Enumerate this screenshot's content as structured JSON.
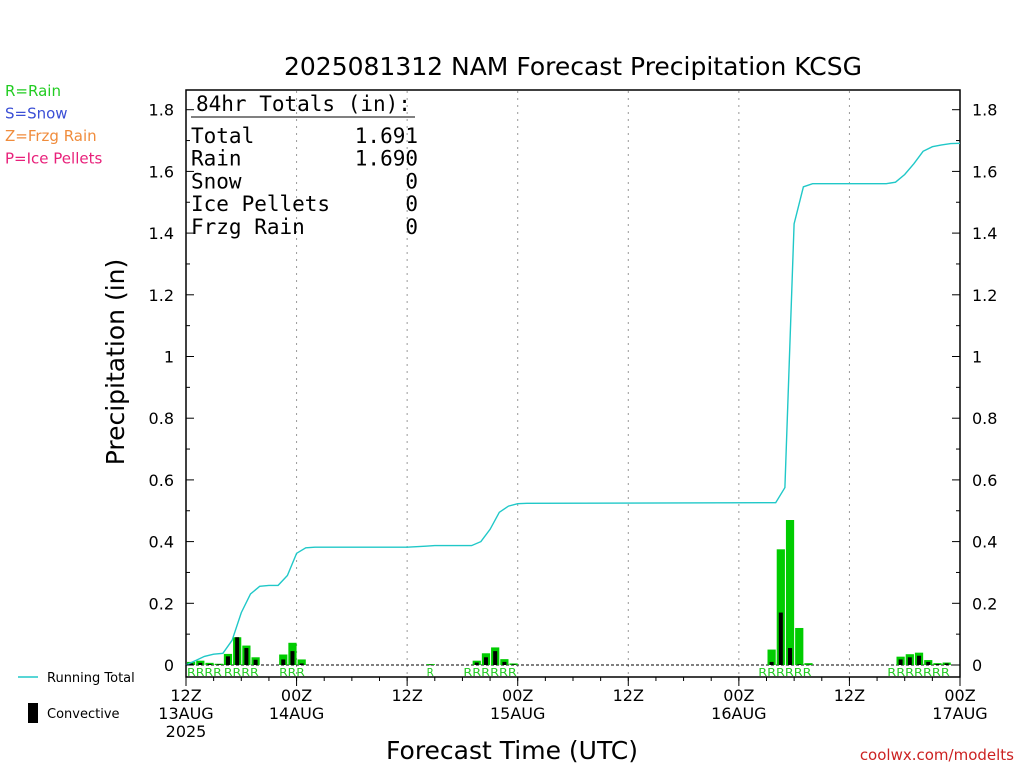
{
  "chart_data": {
    "type": "bar",
    "title": "2025081312 NAM Forecast Precipitation KCSG",
    "xlabel": "Forecast Time (UTC)",
    "ylabel": "Precipitation (in)",
    "ylim": [
      0,
      1.85
    ],
    "y_ticks": [
      "0",
      "0.2",
      "0.4",
      "0.6",
      "0.8",
      "1",
      "1.2",
      "1.4",
      "1.6",
      "1.8"
    ],
    "x_range_hours": [
      0,
      84
    ],
    "x_ticks": [
      {
        "hour": 0,
        "lines": [
          "12Z",
          "13AUG",
          "2025"
        ]
      },
      {
        "hour": 12,
        "lines": [
          "00Z",
          "14AUG"
        ]
      },
      {
        "hour": 24,
        "lines": [
          "12Z"
        ]
      },
      {
        "hour": 36,
        "lines": [
          "00Z",
          "15AUG"
        ]
      },
      {
        "hour": 48,
        "lines": [
          "12Z"
        ]
      },
      {
        "hour": 60,
        "lines": [
          "00Z",
          "16AUG"
        ]
      },
      {
        "hour": 72,
        "lines": [
          "12Z"
        ]
      },
      {
        "hour": 84,
        "lines": [
          "00Z",
          "17AUG"
        ]
      }
    ],
    "grid": "dotted vertical at 12-hour ticks",
    "totals_box": {
      "header": "84hr Totals (in):",
      "rows": [
        {
          "label": "Total",
          "value": "1.691"
        },
        {
          "label": "Rain",
          "value": "1.690"
        },
        {
          "label": "Snow",
          "value": "0"
        },
        {
          "label": "Ice Pellets",
          "value": "0"
        },
        {
          "label": "Frzg Rain",
          "value": "0"
        }
      ]
    },
    "ptype_legend": [
      {
        "text": "R=Rain",
        "color": "#22cc22"
      },
      {
        "text": "S=Snow",
        "color": "#3b4fd6"
      },
      {
        "text": "Z=Frzg Rain",
        "color": "#f08c3c"
      },
      {
        "text": "P=Ice Pellets",
        "color": "#e8207a"
      }
    ],
    "bottom_legend": {
      "running_total": "Running Total",
      "convective": "Convective"
    },
    "colors": {
      "rain": "#00cc00",
      "convective": "#000000",
      "running_total": "#20c8c8",
      "ptype_label": "#22cc22",
      "credit": "#cc2222"
    },
    "precip_bars": [
      {
        "hour": 1,
        "total": 0.01,
        "convective": 0.005
      },
      {
        "hour": 2,
        "total": 0.014,
        "convective": 0.007
      },
      {
        "hour": 3,
        "total": 0.007,
        "convective": 0.003
      },
      {
        "hour": 4,
        "total": 0.004,
        "convective": 0.002
      },
      {
        "hour": 5,
        "total": 0.036,
        "convective": 0.028
      },
      {
        "hour": 6,
        "total": 0.09,
        "convective": 0.09
      },
      {
        "hour": 7,
        "total": 0.063,
        "convective": 0.055
      },
      {
        "hour": 8,
        "total": 0.025,
        "convective": 0.017
      },
      {
        "hour": 11,
        "total": 0.034,
        "convective": 0.018
      },
      {
        "hour": 12,
        "total": 0.072,
        "convective": 0.045
      },
      {
        "hour": 13,
        "total": 0.018,
        "convective": 0.005
      },
      {
        "hour": 27,
        "total": 0.003,
        "convective": 0.001
      },
      {
        "hour": 32,
        "total": 0.014,
        "convective": 0.008
      },
      {
        "hour": 33,
        "total": 0.038,
        "convective": 0.025
      },
      {
        "hour": 34,
        "total": 0.057,
        "convective": 0.045
      },
      {
        "hour": 35,
        "total": 0.019,
        "convective": 0.01
      },
      {
        "hour": 36,
        "total": 0.005,
        "convective": 0.002
      },
      {
        "hour": 64,
        "total": 0.05,
        "convective": 0.01
      },
      {
        "hour": 65,
        "total": 0.375,
        "convective": 0.17
      },
      {
        "hour": 66,
        "total": 0.47,
        "convective": 0.055
      },
      {
        "hour": 67,
        "total": 0.12,
        "convective": 0.002
      },
      {
        "hour": 68,
        "total": 0.006,
        "convective": 0.001
      },
      {
        "hour": 78,
        "total": 0.027,
        "convective": 0.018
      },
      {
        "hour": 79,
        "total": 0.035,
        "convective": 0.025
      },
      {
        "hour": 80,
        "total": 0.04,
        "convective": 0.03
      },
      {
        "hour": 81,
        "total": 0.016,
        "convective": 0.01
      },
      {
        "hour": 82,
        "total": 0.006,
        "convective": 0.003
      },
      {
        "hour": 83,
        "total": 0.008,
        "convective": 0.005
      }
    ],
    "running_total": {
      "x": [
        0,
        1,
        2,
        3,
        4,
        5,
        6,
        7,
        8,
        9,
        10,
        11,
        12,
        13,
        14,
        15,
        24,
        26,
        27,
        31,
        32,
        33,
        34,
        35,
        36,
        37,
        64,
        65,
        66,
        67,
        68,
        69,
        70,
        76,
        77,
        78,
        79,
        80,
        81,
        82,
        83,
        84
      ],
      "y": [
        0,
        0.014,
        0.028,
        0.035,
        0.038,
        0.08,
        0.17,
        0.23,
        0.255,
        0.258,
        0.258,
        0.29,
        0.362,
        0.38,
        0.382,
        0.382,
        0.382,
        0.385,
        0.387,
        0.387,
        0.4,
        0.44,
        0.495,
        0.515,
        0.523,
        0.524,
        0.526,
        0.575,
        1.43,
        1.55,
        1.56,
        1.56,
        1.56,
        1.56,
        1.565,
        1.59,
        1.625,
        1.665,
        1.68,
        1.686,
        1.69,
        1.691
      ]
    },
    "ptype_labels": [
      {
        "start_hour": 1,
        "text": "RRRR"
      },
      {
        "start_hour": 5,
        "text": "RRRR"
      },
      {
        "start_hour": 11,
        "text": "RRR"
      },
      {
        "start_hour": 27,
        "text": "R"
      },
      {
        "start_hour": 31,
        "text": "RRRRRR"
      },
      {
        "start_hour": 63,
        "text": "RRRRRR"
      },
      {
        "start_hour": 77,
        "text": "RRRRRRR"
      }
    ]
  },
  "credit": "coolwx.com/modelts"
}
